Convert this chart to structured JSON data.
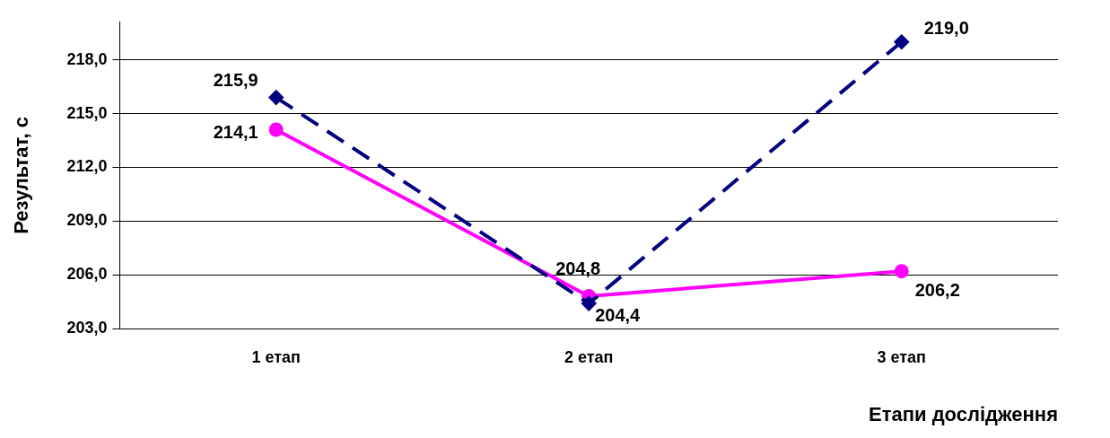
{
  "chart_data": {
    "type": "line",
    "xlabel": "Етапи дослідження",
    "ylabel": "Результат, с",
    "categories": [
      "1 етап",
      "2 етап",
      "3 етап"
    ],
    "series": [
      {
        "color": "#000080",
        "values": [
          215.9,
          204.4,
          219.0
        ],
        "value_labels": [
          "215,9",
          "204,4",
          "219,0"
        ],
        "marker": "diamond",
        "line_style": "dashed"
      },
      {
        "color": "#ff00ff",
        "values": [
          214.1,
          204.8,
          206.2
        ],
        "value_labels": [
          "214,1",
          "204,8",
          "206,2"
        ],
        "marker": "circle",
        "line_style": "solid"
      }
    ],
    "ylim": [
      203,
      220.1
    ],
    "yticks": [
      {
        "value": 203,
        "label": "203,0"
      },
      {
        "value": 206,
        "label": "206,0"
      },
      {
        "value": 209,
        "label": "209,0"
      },
      {
        "value": 212,
        "label": "212,0"
      },
      {
        "value": 215,
        "label": "215,0"
      },
      {
        "value": 218,
        "label": "218,0"
      }
    ],
    "grid": "y",
    "legend": false
  }
}
